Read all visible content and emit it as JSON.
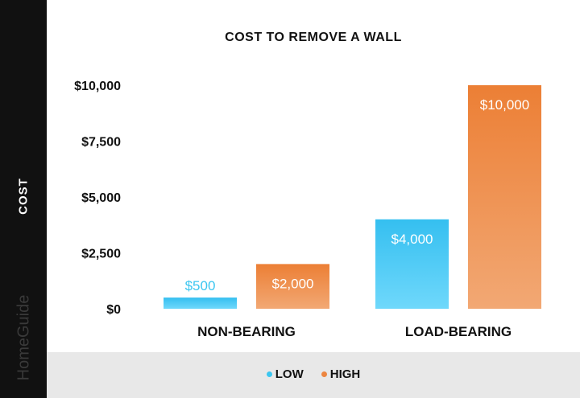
{
  "brand": "HomeGuide",
  "chart_data": {
    "type": "bar",
    "title": "COST TO REMOVE A WALL",
    "ylabel": "COST",
    "xlabel": "",
    "categories": [
      "NON-BEARING",
      "LOAD-BEARING"
    ],
    "series": [
      {
        "name": "LOW",
        "values": [
          500,
          4000
        ],
        "labels": [
          "$500",
          "$4,000"
        ],
        "color": "#3cc6f0"
      },
      {
        "name": "HIGH",
        "values": [
          2000,
          10000
        ],
        "labels": [
          "$2,000",
          "$10,000"
        ],
        "color": "#ec8540"
      }
    ],
    "ylim": [
      0,
      10000
    ],
    "yticks": [
      0,
      2500,
      5000,
      7500,
      10000
    ],
    "ytick_labels": [
      "$0",
      "$2,500",
      "$5,000",
      "$7,500",
      "$10,000"
    ],
    "grid": false,
    "legend_position": "bottom"
  }
}
